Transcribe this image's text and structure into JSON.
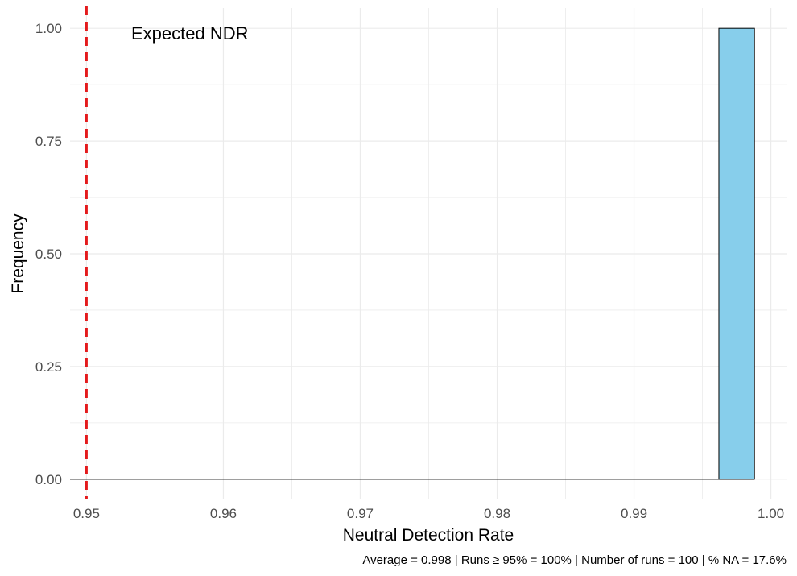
{
  "chart_data": {
    "type": "bar",
    "subtype": "histogram",
    "xlabel": "Neutral Detection Rate",
    "ylabel": "Frequency",
    "xlim": [
      0.9488,
      1.0012
    ],
    "ylim": [
      -0.045,
      1.045
    ],
    "x_ticks": [
      0.95,
      0.96,
      0.97,
      0.98,
      0.99,
      1.0
    ],
    "x_tick_labels": [
      "0.95",
      "0.96",
      "0.97",
      "0.98",
      "0.99",
      "1.00"
    ],
    "y_ticks": [
      0,
      0.25,
      0.5,
      0.75,
      1.0
    ],
    "y_tick_labels": [
      "0.00",
      "0.25",
      "0.50",
      "0.75",
      "1.00"
    ],
    "grid": true,
    "bins": [
      {
        "x_start": 0.9962,
        "x_end": 0.9988,
        "count": 1
      }
    ],
    "baseline": {
      "x_start": 0.9488,
      "x_end": 0.9988,
      "value": 0
    },
    "reference_line": {
      "x": 0.95,
      "label": "Expected NDR",
      "color": "#e41a1c",
      "style": "dashed"
    },
    "caption": "Average = 0.998 | Runs ≥ 95% = 100% | Number of runs = 100 | % NA = 17.6%",
    "colors": {
      "bar_fill": "#87ceeb",
      "bar_stroke": "#000000",
      "grid": "#ebebeb",
      "ref_line": "#e41a1c"
    }
  }
}
